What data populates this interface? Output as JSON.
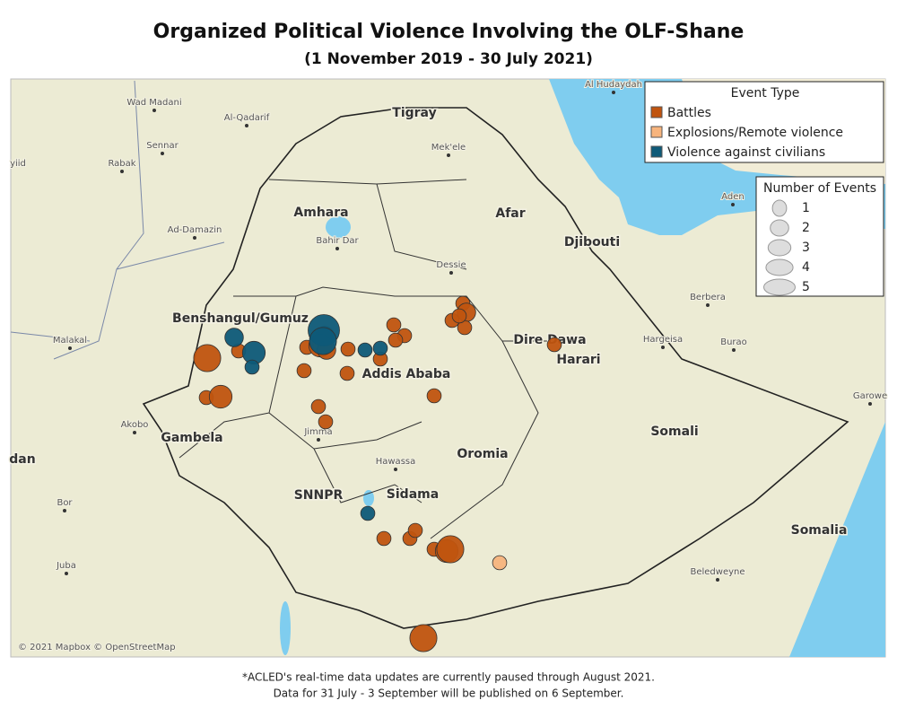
{
  "header": {
    "title": "Organized Political Violence Involving the OLF-Shane",
    "subtitle": "(1 November 2019 - 30 July 2021)"
  },
  "map": {
    "labels": [
      "Tigray",
      "Amhara",
      "Afar",
      "Benshangul/Gumuz",
      "Addis Ababa",
      "Oromia",
      "Gambela",
      "SNNPR",
      "Sidama",
      "Somali",
      "Somalia",
      "Djibouti",
      "Dire Dawa",
      "Harari",
      "dan",
      "Bahir Dar",
      "Mek'ele",
      "Dessie",
      "Hawassa",
      "Jimma",
      "Wad Madani",
      "Al-Qadarif",
      "Sennar",
      "Rabak",
      "Ad-Damazin",
      "Malakal",
      "Akobo",
      "Bor",
      "Juba",
      "Al Hudaydah",
      "Aden",
      "Berbera",
      "Hargeisa",
      "Burao",
      "Garowe",
      "Beledweyne",
      "yiid"
    ],
    "attribution": "© 2021 Mapbox © OpenStreetMap"
  },
  "legend_event_type": {
    "title": "Event Type",
    "types": [
      {
        "label": "Battles",
        "color": "#c0540f",
        "events": [
          4,
          1,
          1,
          3,
          1,
          2,
          3,
          2,
          1,
          1,
          1,
          1,
          1,
          1,
          1,
          1,
          1,
          1,
          1,
          1,
          2,
          1,
          1,
          1,
          1,
          1,
          1,
          1,
          3,
          4,
          4
        ]
      },
      {
        "label": "Explosions/Remote violence",
        "color": "#f7b47d",
        "events": [
          1
        ]
      },
      {
        "label": "Violence against civilians",
        "color": "#0e5a78",
        "events": [
          5,
          4,
          2,
          3,
          1,
          1,
          1,
          1
        ]
      }
    ]
  },
  "legend_size": {
    "title": "Number of Events",
    "sizes": [
      1,
      2,
      3,
      4,
      5
    ]
  },
  "footnote": [
    "*ACLED's real-time data updates are currently paused through August 2021.",
    "Data for 31 July - 3 September will be published on 6 September."
  ]
}
